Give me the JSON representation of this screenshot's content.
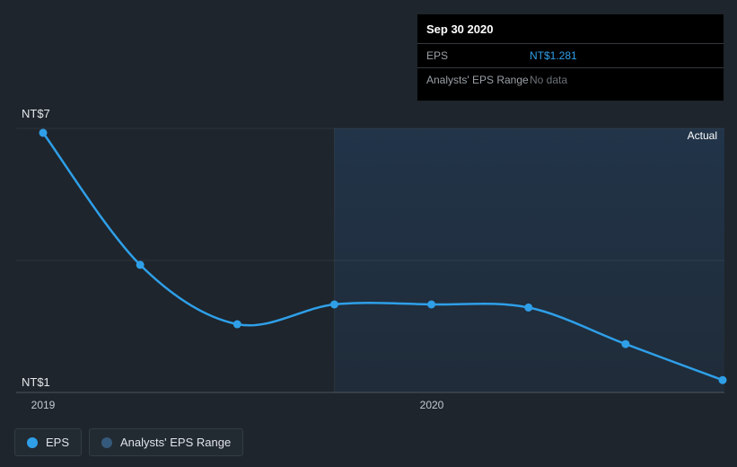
{
  "tooltip": {
    "date": "Sep 30 2020",
    "rows": [
      {
        "label": "EPS",
        "value": "NT$1.281",
        "style": "highlight"
      },
      {
        "label": "Analysts' EPS Range",
        "value": "No data",
        "style": "muted"
      }
    ]
  },
  "axes": {
    "y_top": "NT$7",
    "y_bottom": "NT$1",
    "x_ticks": [
      "2019",
      "2020"
    ]
  },
  "annotations": {
    "actual": "Actual"
  },
  "legend": [
    {
      "label": "EPS"
    },
    {
      "label": "Analysts' EPS Range"
    }
  ],
  "colors": {
    "line": "#2f9fe8",
    "background": "#1e252c",
    "actual_region": "#2f6fbc",
    "tooltip_value": "#2f9fe8"
  },
  "chart_data": {
    "type": "line",
    "title": "",
    "x": [
      "2018-12-31",
      "2019-03-31",
      "2019-06-30",
      "2019-09-30",
      "2019-12-31",
      "2020-03-31",
      "2020-06-30",
      "2020-09-30"
    ],
    "series": [
      {
        "name": "EPS",
        "values": [
          6.9,
          3.9,
          2.55,
          3.0,
          3.0,
          2.93,
          2.1,
          1.281
        ]
      }
    ],
    "xlabel": "",
    "ylabel": "",
    "ylim": [
      1,
      7
    ],
    "y_tick_labels_shown": [
      "NT$7",
      "NT$1"
    ],
    "grid_values": [
      7,
      4,
      1
    ],
    "x_tick_labels": [
      {
        "label": "2019",
        "point_index": 0
      },
      {
        "label": "2020",
        "point_index": 4
      }
    ],
    "actual_region_start_index": 3,
    "actual_region_label": "Actual",
    "legend_position": "bottom-left",
    "grid": true
  }
}
